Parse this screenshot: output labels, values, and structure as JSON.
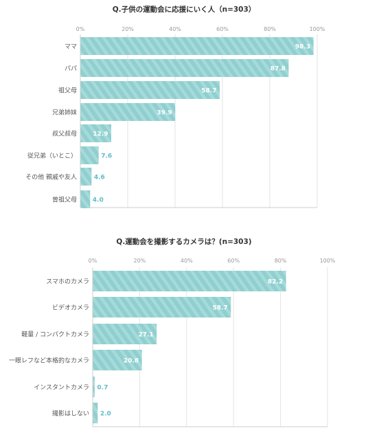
{
  "chart_data": [
    {
      "type": "bar",
      "orientation": "horizontal",
      "title": "Q.子供の運動会に応援にいく人（n=303）",
      "xlim": [
        0,
        100
      ],
      "ticks": [
        "0%",
        "20%",
        "40%",
        "60%",
        "80%",
        "100%"
      ],
      "categories": [
        "ママ",
        "パパ",
        "祖父母",
        "兄弟姉妹",
        "叔父叔母",
        "従兄弟（いとこ）",
        "その他 親戚や友人",
        "曾祖父母"
      ],
      "values": [
        98.3,
        87.8,
        58.7,
        39.9,
        12.9,
        7.6,
        4.6,
        4.0
      ],
      "value_labels": [
        "98.3",
        "87.8",
        "58.7",
        "39.9",
        "12.9",
        "7.6",
        "4.6",
        "4.0"
      ],
      "grid": true,
      "bar_color": "#8fcfcf",
      "bar_stripe_color": "#a9dcdc",
      "outside_label_color": "#5fbcc8",
      "inside_label_color": "#ffffff"
    },
    {
      "type": "bar",
      "orientation": "horizontal",
      "title": "Q.運動会を撮影するカメラは？(n=303)",
      "xlim": [
        0,
        100
      ],
      "ticks": [
        "0%",
        "20%",
        "40%",
        "60%",
        "80%",
        "100%"
      ],
      "categories": [
        "スマホのカメラ",
        "ビデオカメラ",
        "軽量 / コンパクトカメラ",
        "一眼レフなど本格的なカメラ",
        "インスタントカメラ",
        "撮影はしない"
      ],
      "values": [
        82.2,
        58.7,
        27.1,
        20.8,
        0.7,
        2.0
      ],
      "value_labels": [
        "82.2",
        "58.7",
        "27.1",
        "20.8",
        "0.7",
        "2.0"
      ],
      "grid": true,
      "bar_color": "#8fcfcf",
      "bar_stripe_color": "#a9dcdc",
      "outside_label_color": "#5fbcc8",
      "inside_label_color": "#ffffff"
    }
  ]
}
